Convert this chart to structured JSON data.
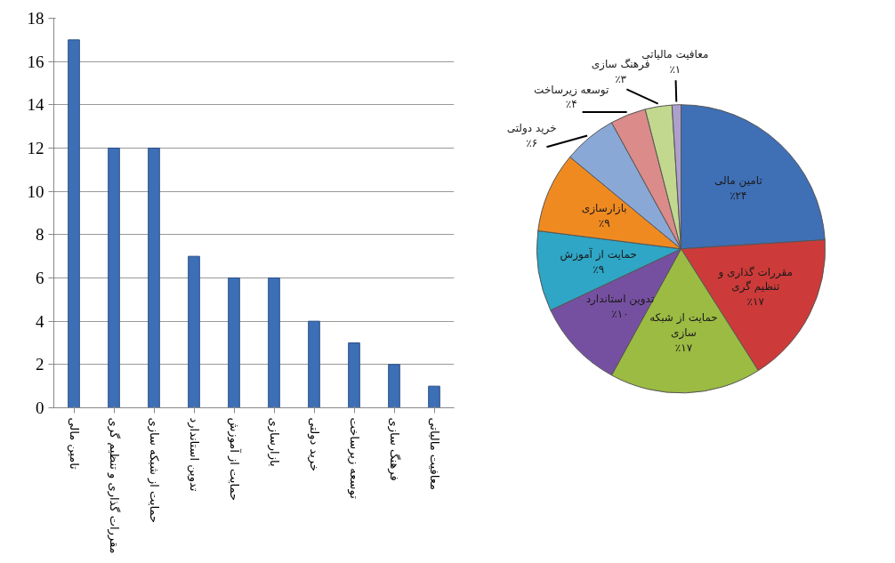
{
  "chart_data": [
    {
      "type": "bar",
      "categories": [
        "تامین مالی",
        "مقررات گذاری و تنظیم گری",
        "حمایت از شبکه سازی",
        "تدوین استاندارد",
        "حمایت از آموزش",
        "بازارسازی",
        "خرید دولتی",
        "توسعه زیرساخت",
        "فرهنگ سازی",
        "معافیت مالیاتی"
      ],
      "values": [
        17,
        12,
        12,
        7,
        6,
        6,
        4,
        3,
        2,
        1
      ],
      "color": "#3d6fb6",
      "ylim": [
        0,
        18
      ],
      "yticks": [
        0,
        2,
        4,
        6,
        8,
        10,
        12,
        14,
        16,
        18
      ],
      "grid": "y"
    },
    {
      "type": "pie",
      "categories": [
        "تامین مالی",
        "مقررات گذاری و تنظیم گری",
        "حمایت از شبکه سازی",
        "تدوین استاندارد",
        "حمایت از آموزش",
        "بازارسازی",
        "خرید دولتی",
        "توسعه زیرساخت",
        "فرهنگ سازی",
        "معافیت مالیاتی"
      ],
      "values": [
        24,
        17,
        17,
        10,
        9,
        9,
        6,
        4,
        3,
        1
      ],
      "colors": [
        "#3f6fb5",
        "#cc3b39",
        "#9bbb43",
        "#7650a0",
        "#2fa6c6",
        "#ef8a21",
        "#8aa8d6",
        "#da8b8a",
        "#c2d88f",
        "#ada0cc"
      ],
      "value_labels": [
        "٪۲۴",
        "٪۱۷",
        "٪۱۷",
        "٪۱۰",
        "٪۹",
        "٪۹",
        "٪۶",
        "٪۴",
        "٪۳",
        "٪۱"
      ]
    }
  ]
}
